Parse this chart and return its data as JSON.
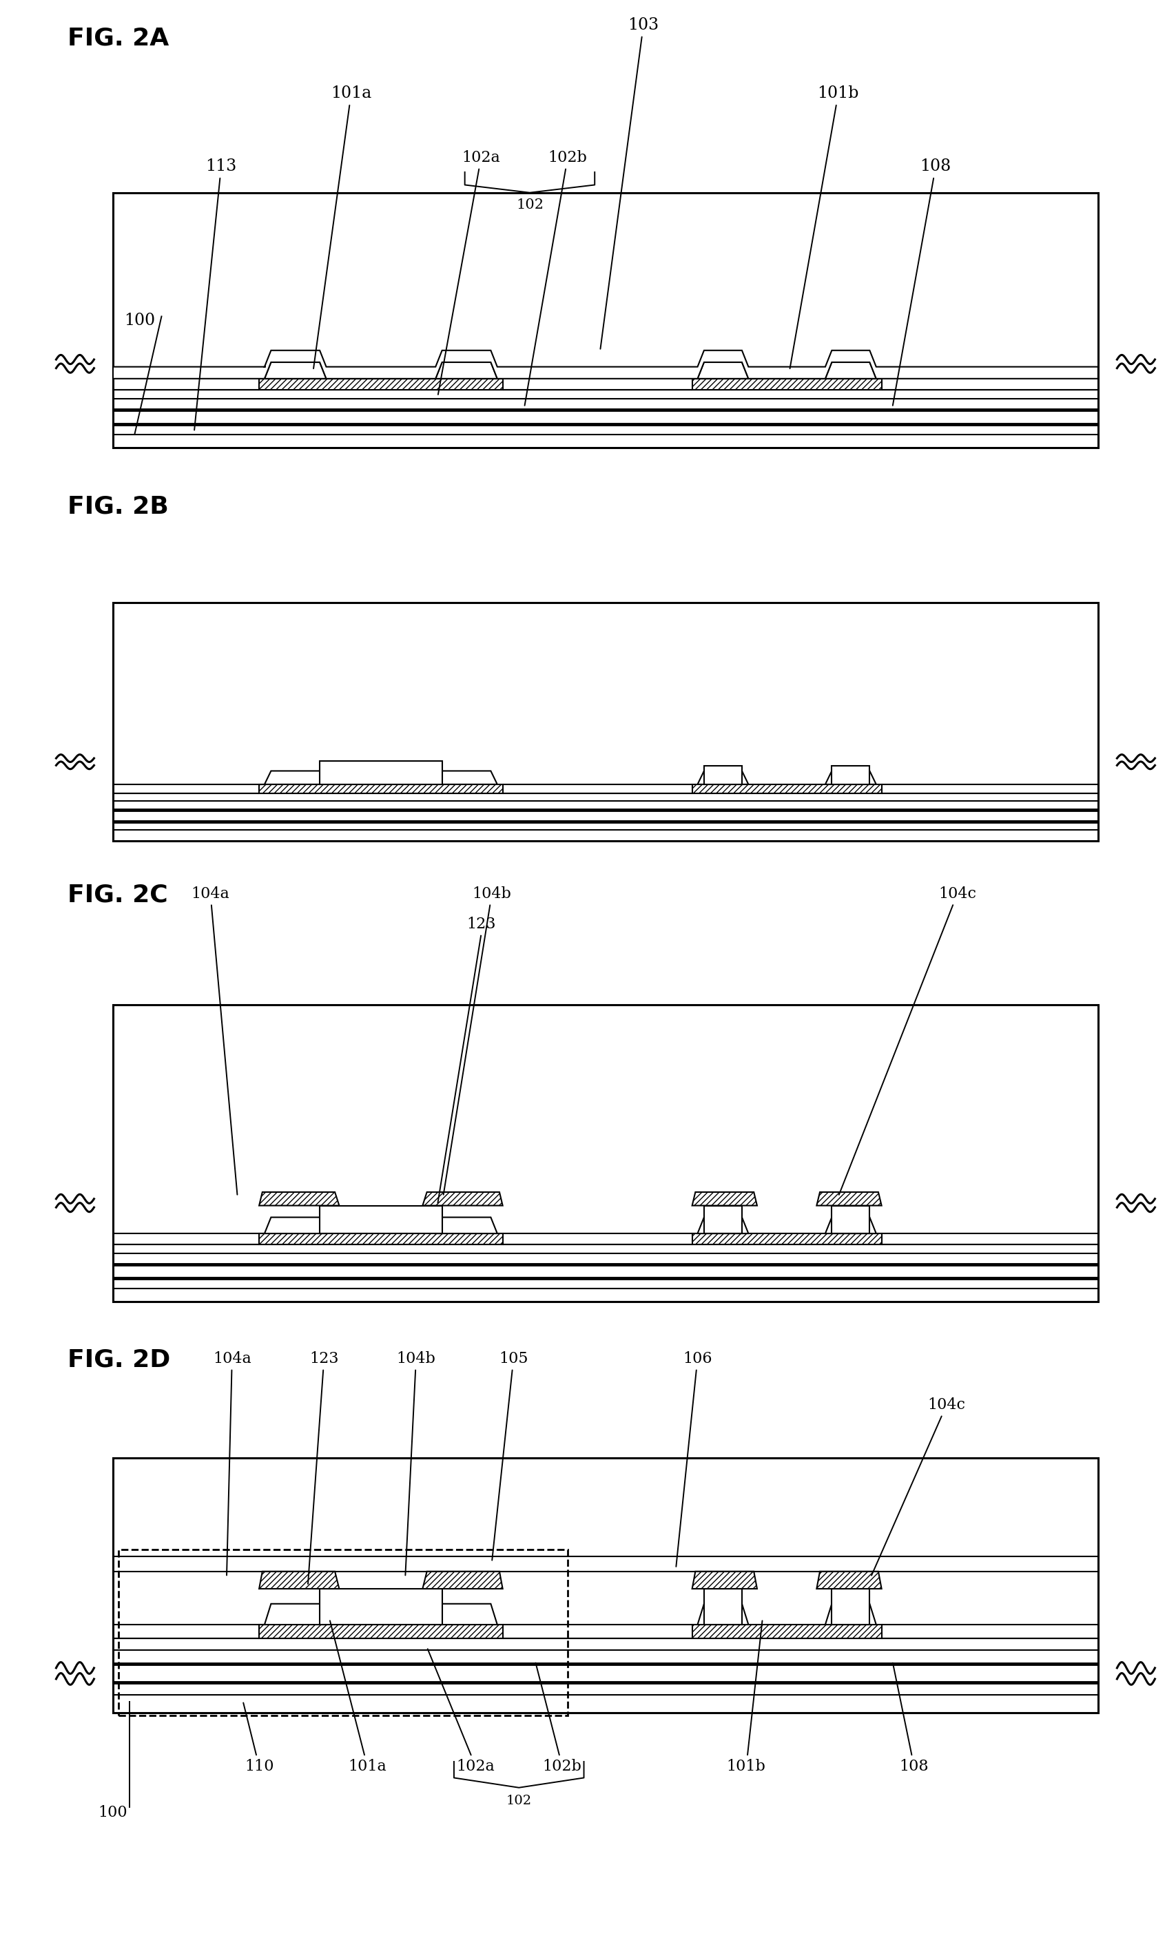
{
  "fig_labels": [
    "FIG. 2A",
    "FIG. 2B",
    "FIG. 2C",
    "FIG. 2D"
  ],
  "bg_color": "#ffffff",
  "line_color": "#000000",
  "label_fontsize": 26,
  "annot_fontsize": 17,
  "lw_main": 2.2,
  "lw_thin": 1.5,
  "lw_thick": 3.5
}
